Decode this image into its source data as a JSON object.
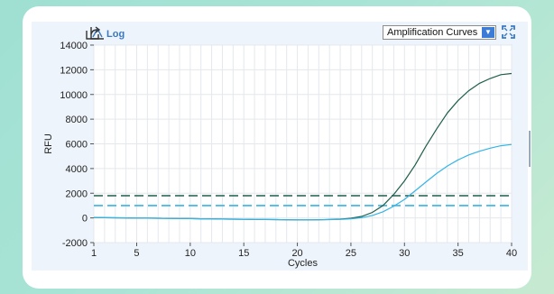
{
  "toolbar": {
    "chart_icon": "area-chart-icon",
    "export_icon": "export-icon",
    "log_label": "Log",
    "view_select": "Amplification Curves",
    "view_select_arrow": "chevron-down-icon",
    "fullscreen_icon": "expand-icon"
  },
  "colors": {
    "series_dark": "#1e5e4a",
    "series_light": "#35b4e6",
    "threshold_dark": "#1e5e4a",
    "threshold_light": "#35b4e6",
    "panel_bg": "#eef4fb"
  },
  "chart_data": {
    "type": "line",
    "xlabel": "Cycles",
    "ylabel": "RFU",
    "xlim": [
      1,
      40
    ],
    "ylim": [
      -2000,
      14000
    ],
    "x_ticks": [
      1,
      5,
      10,
      15,
      20,
      25,
      30,
      35,
      40
    ],
    "y_ticks": [
      -2000,
      0,
      2000,
      4000,
      6000,
      8000,
      10000,
      12000,
      14000
    ],
    "x_tick_labels": [
      "1",
      "5",
      "10",
      "15",
      "20",
      "25",
      "30",
      "35",
      "40"
    ],
    "y_tick_labels": [
      "-2000",
      "0",
      "2000",
      "4000",
      "6000",
      "8000",
      "10000",
      "12000",
      "14000"
    ],
    "grid": true,
    "series": [
      {
        "color": "#1e5e4a",
        "x": [
          1,
          2,
          3,
          4,
          5,
          6,
          7,
          8,
          9,
          10,
          11,
          12,
          13,
          14,
          15,
          16,
          17,
          18,
          19,
          20,
          21,
          22,
          23,
          24,
          25,
          26,
          27,
          28,
          29,
          30,
          31,
          32,
          33,
          34,
          35,
          36,
          37,
          38,
          39,
          40
        ],
        "values": [
          30,
          20,
          10,
          0,
          -10,
          -20,
          -30,
          -40,
          -50,
          -60,
          -70,
          -80,
          -90,
          -100,
          -110,
          -120,
          -130,
          -140,
          -150,
          -160,
          -160,
          -150,
          -130,
          -100,
          -30,
          120,
          450,
          1000,
          1900,
          3000,
          4300,
          5800,
          7200,
          8500,
          9500,
          10300,
          10900,
          11300,
          11600,
          11700
        ]
      },
      {
        "color": "#35b4e6",
        "x": [
          1,
          2,
          3,
          4,
          5,
          6,
          7,
          8,
          9,
          10,
          11,
          12,
          13,
          14,
          15,
          16,
          17,
          18,
          19,
          20,
          21,
          22,
          23,
          24,
          25,
          26,
          27,
          28,
          29,
          30,
          31,
          32,
          33,
          34,
          35,
          36,
          37,
          38,
          39,
          40
        ],
        "values": [
          30,
          20,
          10,
          0,
          -10,
          -20,
          -30,
          -40,
          -50,
          -60,
          -70,
          -80,
          -90,
          -100,
          -110,
          -120,
          -130,
          -140,
          -150,
          -160,
          -160,
          -150,
          -140,
          -120,
          -70,
          20,
          200,
          500,
          950,
          1500,
          2200,
          2900,
          3600,
          4200,
          4700,
          5100,
          5400,
          5650,
          5850,
          5950
        ]
      }
    ],
    "thresholds": [
      {
        "value": 1800,
        "color": "#1e5e4a"
      },
      {
        "value": 1000,
        "color": "#35b4e6"
      }
    ]
  }
}
